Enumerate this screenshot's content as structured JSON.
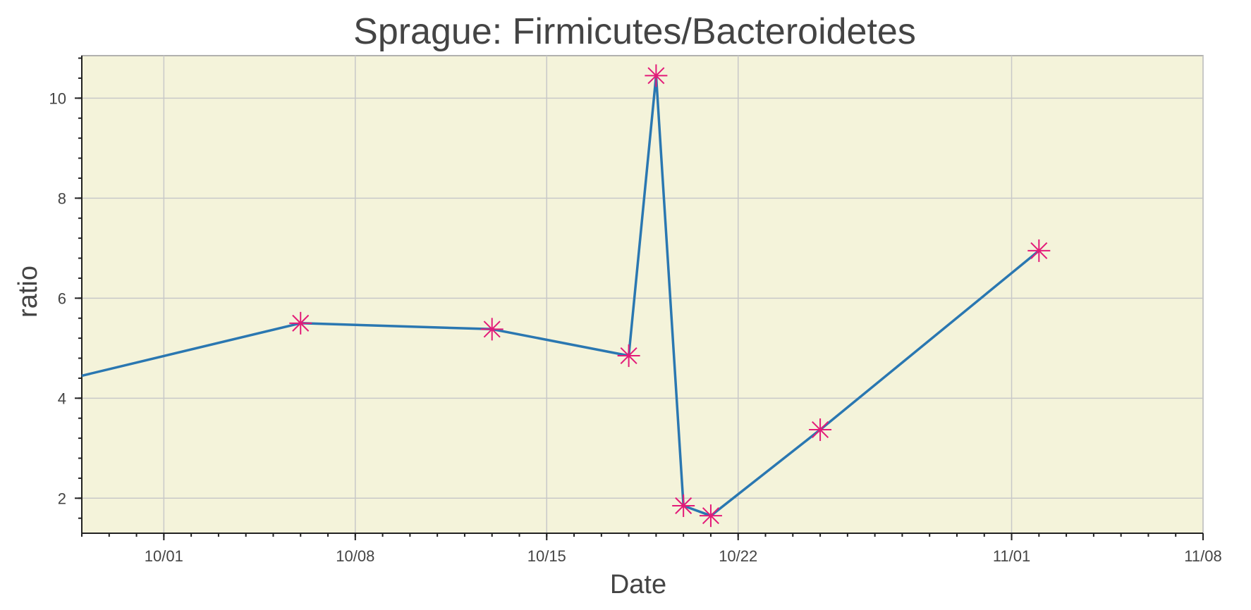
{
  "chart_data": {
    "type": "line",
    "title": "Sprague: Firmicutes/Bacteroidetes",
    "xlabel": "Date",
    "ylabel": "ratio",
    "x_tick_labels": [
      "10/01",
      "10/08",
      "10/15",
      "10/22",
      "11/01",
      "11/08"
    ],
    "x_tick_dates": [
      "2015-10-01",
      "2015-10-08",
      "2015-10-15",
      "2015-10-22",
      "2015-11-01",
      "2015-11-08"
    ],
    "xlim": [
      "2015-09-28",
      "2015-11-08"
    ],
    "y_ticks": [
      2,
      4,
      6,
      8,
      10
    ],
    "ylim": [
      1.3,
      10.85
    ],
    "grid": true,
    "colors": {
      "line": "#2a77b1",
      "marker": "#e31a78",
      "plot_background": "#f4f3da",
      "grid": "#c8c8c8"
    },
    "marker": "asterisk",
    "series": [
      {
        "x": [
          "2015-09-28",
          "2015-10-06",
          "2015-10-13",
          "2015-10-18",
          "2015-10-19",
          "2015-10-20",
          "2015-10-21",
          "2015-10-25",
          "2015-11-02"
        ],
        "y": [
          4.45,
          5.5,
          5.38,
          4.85,
          10.45,
          1.85,
          1.65,
          3.37,
          6.95
        ],
        "markers": [
          false,
          true,
          true,
          true,
          true,
          true,
          true,
          true,
          true
        ]
      }
    ]
  }
}
